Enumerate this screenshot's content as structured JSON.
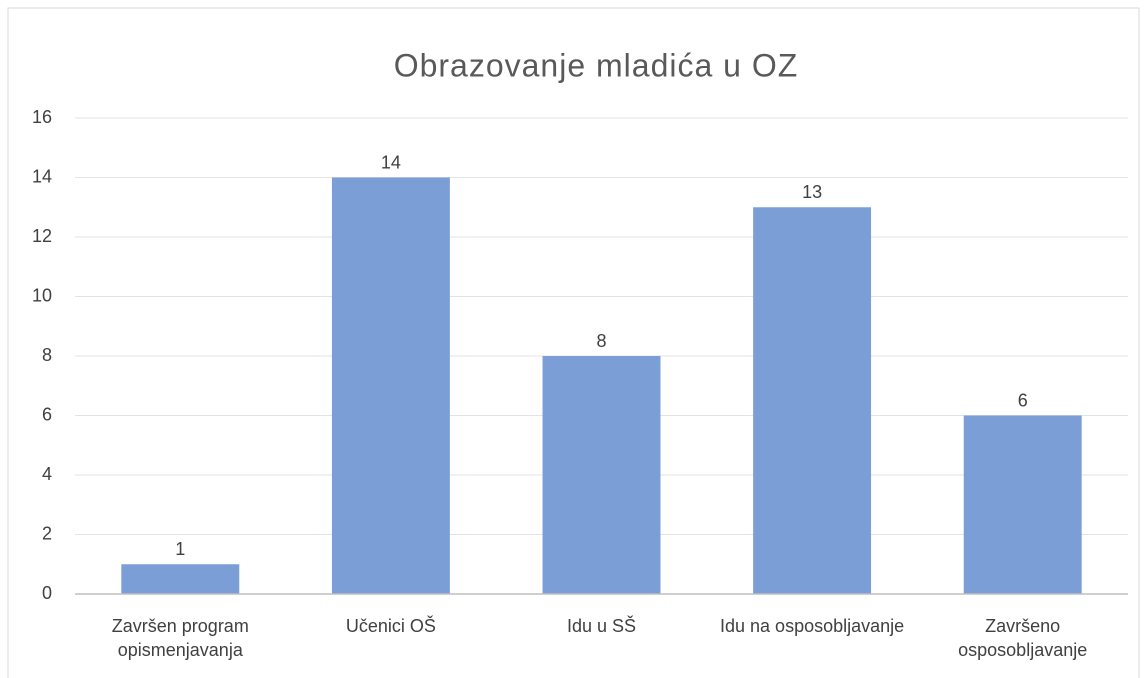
{
  "chart_data": {
    "type": "bar",
    "title": "Obrazovanje mladića u OZ",
    "categories": [
      "Završen program opismenjavanja",
      "Učenici OŠ",
      "Idu u SŠ",
      "Idu na osposobljavanje",
      "Završeno osposobljavanje"
    ],
    "values": [
      1,
      14,
      8,
      13,
      6
    ],
    "color": "#7b9ed7",
    "ylim": [
      0,
      16
    ],
    "yticks": [
      0,
      2,
      4,
      6,
      8,
      10,
      12,
      14,
      16
    ],
    "grid": true
  }
}
